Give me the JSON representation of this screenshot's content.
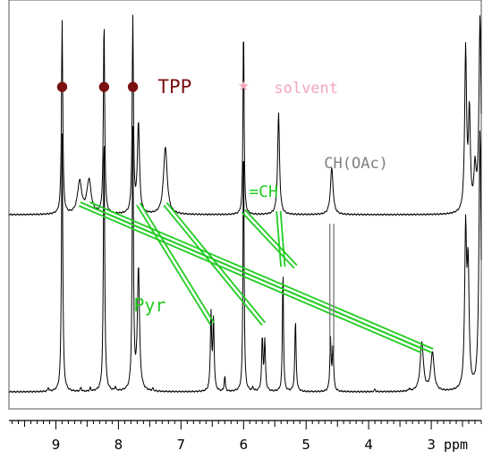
{
  "chart_data": {
    "type": "line",
    "xlabel": "ppm",
    "xlim": [
      9.75,
      2.2
    ],
    "x_ticks": [
      "9",
      "8",
      "7",
      "6",
      "5",
      "4",
      "3"
    ],
    "x_tick_values": [
      9,
      8,
      7,
      6,
      5,
      4,
      3
    ],
    "series": [
      {
        "peaks": [
          {
            "ppm": 8.9,
            "h": 1.5,
            "w": 0.012
          },
          {
            "ppm": 8.23,
            "h": 1.5,
            "w": 0.012
          },
          {
            "ppm": 7.77,
            "h": 1.5,
            "w": 0.012
          },
          {
            "ppm": 7.68,
            "h": 0.7,
            "w": 0.02
          },
          {
            "ppm": 8.62,
            "h": 0.25,
            "w": 0.04
          },
          {
            "ppm": 8.47,
            "h": 0.26,
            "w": 0.04
          },
          {
            "ppm": 7.25,
            "h": 0.52,
            "w": 0.035
          },
          {
            "ppm": 6.0,
            "h": 1.5,
            "w": 0.01
          },
          {
            "ppm": 5.44,
            "h": 0.78,
            "w": 0.018
          },
          {
            "ppm": 4.59,
            "h": 0.36,
            "w": 0.025
          },
          {
            "ppm": 2.45,
            "h": 1.25,
            "w": 0.018
          },
          {
            "ppm": 2.39,
            "h": 0.75,
            "w": 0.018
          },
          {
            "ppm": 2.3,
            "h": 0.32,
            "w": 0.02
          },
          {
            "ppm": 2.22,
            "h": 1.5,
            "w": 0.02
          }
        ]
      },
      {
        "peaks": [
          {
            "ppm": 8.9,
            "h": 2.0,
            "w": 0.012
          },
          {
            "ppm": 8.23,
            "h": 2.0,
            "w": 0.012
          },
          {
            "ppm": 7.77,
            "h": 2.0,
            "w": 0.012
          },
          {
            "ppm": 7.68,
            "h": 0.95,
            "w": 0.02
          },
          {
            "ppm": 6.52,
            "h": 0.6,
            "w": 0.012
          },
          {
            "ppm": 6.48,
            "h": 0.55,
            "w": 0.012
          },
          {
            "ppm": 6.3,
            "h": 0.12,
            "w": 0.01
          },
          {
            "ppm": 6.0,
            "h": 2.0,
            "w": 0.01
          },
          {
            "ppm": 5.7,
            "h": 0.41,
            "w": 0.012
          },
          {
            "ppm": 5.66,
            "h": 0.38,
            "w": 0.012
          },
          {
            "ppm": 5.37,
            "h": 0.95,
            "w": 0.01
          },
          {
            "ppm": 5.17,
            "h": 0.55,
            "w": 0.012
          },
          {
            "ppm": 4.61,
            "h": 0.4,
            "w": 0.012
          },
          {
            "ppm": 4.57,
            "h": 0.35,
            "w": 0.012
          },
          {
            "ppm": 3.15,
            "h": 0.38,
            "w": 0.03
          },
          {
            "ppm": 2.98,
            "h": 0.3,
            "w": 0.03
          },
          {
            "ppm": 2.45,
            "h": 1.2,
            "w": 0.018
          },
          {
            "ppm": 2.41,
            "h": 0.9,
            "w": 0.018
          },
          {
            "ppm": 2.22,
            "h": 2.0,
            "w": 0.02
          },
          {
            "ppm": 9.12,
            "h": 0.03,
            "w": 0.01
          },
          {
            "ppm": 8.6,
            "h": 0.03,
            "w": 0.01
          },
          {
            "ppm": 8.45,
            "h": 0.025,
            "w": 0.01
          },
          {
            "ppm": 8.05,
            "h": 0.03,
            "w": 0.01
          },
          {
            "ppm": 7.45,
            "h": 0.02,
            "w": 0.01
          },
          {
            "ppm": 5.85,
            "h": 0.03,
            "w": 0.01
          },
          {
            "ppm": 3.9,
            "h": 0.02,
            "w": 0.01
          },
          {
            "ppm": 3.35,
            "h": 0.02,
            "w": 0.01
          }
        ]
      }
    ],
    "markers": [
      {
        "ppm": 8.9,
        "symbol": "●",
        "color": "#7a1010"
      },
      {
        "ppm": 8.23,
        "symbol": "●",
        "color": "#7a1010"
      },
      {
        "ppm": 7.77,
        "symbol": "●",
        "color": "#7a1010"
      },
      {
        "ppm": 6.0,
        "symbol": "★",
        "color": "#f2a6b8"
      }
    ],
    "annotations": [
      {
        "text": "TPP",
        "color": "#7a1010"
      },
      {
        "text": "solvent",
        "color": "#f2a6b8"
      },
      {
        "text": "CH(OAc)",
        "color": "#808080"
      },
      {
        "text": "=CH",
        "color": "#22cc22"
      },
      {
        "text": "Pyr",
        "color": "#22cc22"
      }
    ],
    "correlations": [
      {
        "from_ppm": 8.62,
        "to_ppm": 3.15,
        "group": "Pyr"
      },
      {
        "from_ppm": 8.47,
        "to_ppm": 2.98,
        "group": "Pyr"
      },
      {
        "from_ppm": 7.68,
        "to_ppm": 6.5,
        "group": "Pyr"
      },
      {
        "from_ppm": 7.25,
        "to_ppm": 5.68,
        "group": "Pyr"
      },
      {
        "from_ppm": 6.0,
        "to_ppm": 5.17,
        "group": "=CH"
      },
      {
        "from_ppm": 5.44,
        "to_ppm": 5.37,
        "group": "=CH"
      },
      {
        "from_ppm": 4.59,
        "to_ppm": 4.59,
        "group": "CH(OAc)"
      }
    ],
    "colors": {
      "spectrum": "#000000",
      "tpp": "#7a1010",
      "solvent": "#f2a6b8",
      "correlation": "#22cc22",
      "ch_oac": "#808080"
    },
    "grid": false
  }
}
